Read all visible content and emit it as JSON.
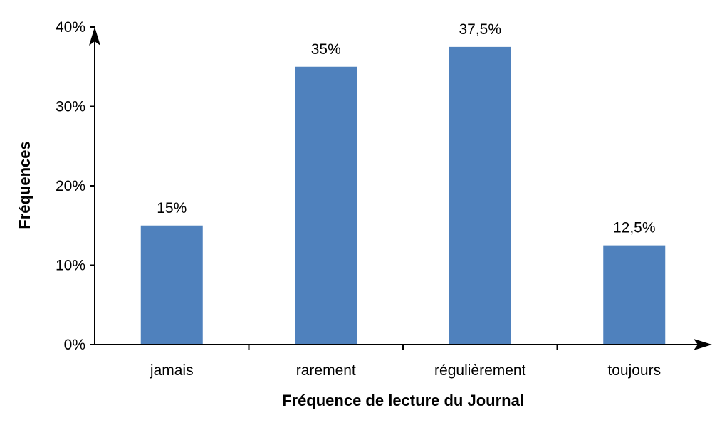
{
  "chart_data": {
    "type": "bar",
    "title": "",
    "xlabel": "Fréquence de lecture du Journal",
    "ylabel": "Fréquences",
    "categories": [
      "jamais",
      "rarement",
      "régulièrement",
      "toujours"
    ],
    "values": [
      15,
      35,
      37.5,
      12.5
    ],
    "data_labels": [
      "15%",
      "35%",
      "37,5%",
      "12,5%"
    ],
    "ylim": [
      0,
      40
    ],
    "yticks": [
      0,
      10,
      20,
      30,
      40
    ],
    "ytick_labels": [
      "0%",
      "10%",
      "20%",
      "30%",
      "40%"
    ],
    "grid": false,
    "legend": "none",
    "bar_color": "#4f81bd",
    "axis_color": "#000000"
  }
}
